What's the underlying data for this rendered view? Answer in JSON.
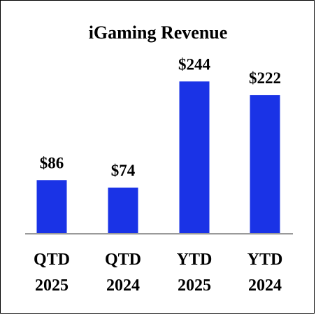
{
  "chart_data": {
    "type": "bar",
    "title": "iGaming Revenue",
    "xlabel": "",
    "ylabel": "",
    "categories": [
      [
        "QTD",
        "2025"
      ],
      [
        "QTD",
        "2024"
      ],
      [
        "YTD",
        "2025"
      ],
      [
        "YTD",
        "2024"
      ]
    ],
    "values": [
      86,
      74,
      244,
      222
    ],
    "data_labels": [
      "$86",
      "$74",
      "$244",
      "$222"
    ],
    "ylim": [
      0,
      250
    ],
    "grid": false,
    "legend": "none",
    "colors": {
      "bar": "#1a33e6",
      "axis": "#9a9a9a",
      "text": "#000000"
    }
  }
}
